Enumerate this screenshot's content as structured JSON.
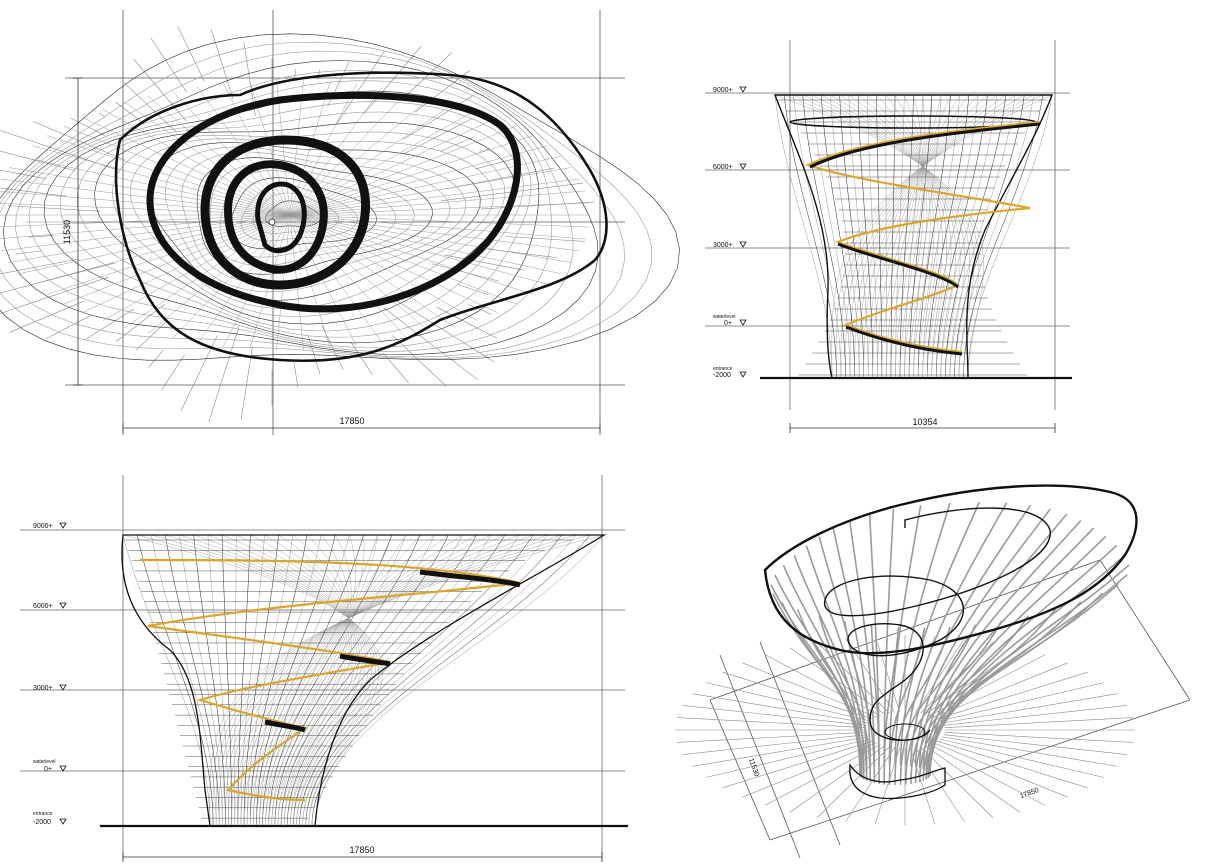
{
  "plan_view": {
    "dim_width": "17850",
    "dim_height": "11530"
  },
  "section_a": {
    "dim_width": "10354",
    "levels": [
      {
        "label": "9000+"
      },
      {
        "label": "6000+"
      },
      {
        "label": "3000+"
      },
      {
        "note": "waterlevel",
        "label": "0+"
      },
      {
        "note": "entrance",
        "label": "-2000"
      }
    ]
  },
  "section_b": {
    "dim_width": "17850",
    "levels": [
      {
        "label": "9000+"
      },
      {
        "label": "6000+"
      },
      {
        "label": "3000+"
      },
      {
        "note": "waterlevel",
        "label": "0+"
      },
      {
        "note": "entrance",
        "label": "-2000"
      }
    ]
  },
  "axonometric": {
    "dim_width": "17850",
    "dim_depth": "11530"
  },
  "colors": {
    "mesh": "#2a2a2a",
    "mesh_light": "#9a9a9a",
    "ramp": "#d9a62b",
    "ink": "#111111"
  }
}
